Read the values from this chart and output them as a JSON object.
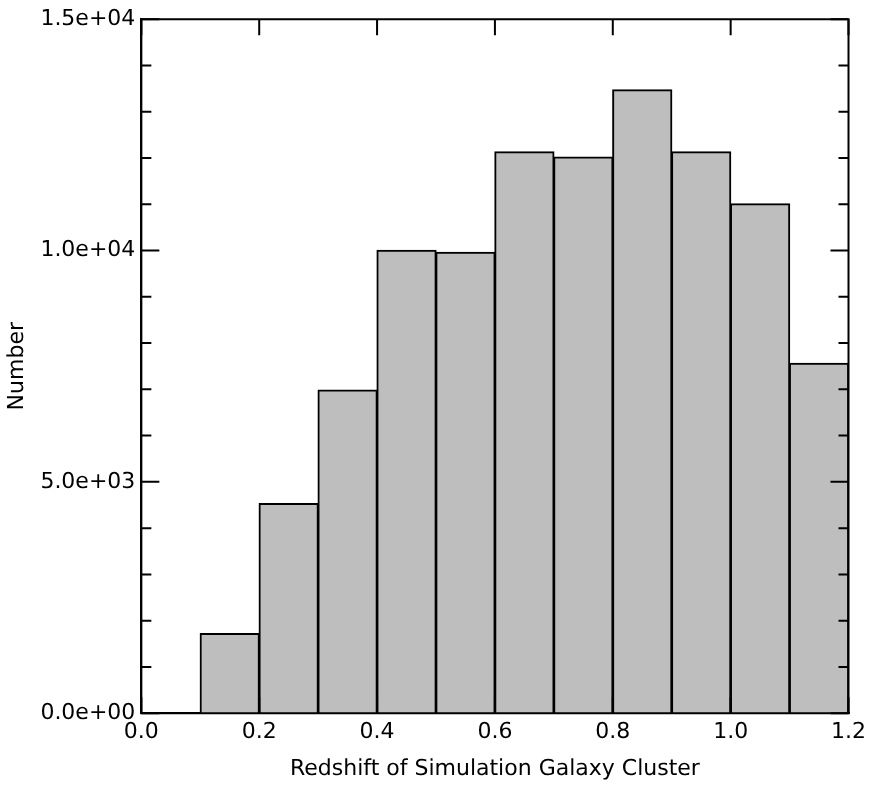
{
  "chart_data": {
    "type": "histogram",
    "xlabel": "Redshift of Simulation Galaxy Cluster",
    "ylabel": "Number",
    "bins": [
      0,
      0.1,
      0.2,
      0.3,
      0.4,
      0.5,
      0.6,
      0.7,
      0.8,
      0.9,
      1.0,
      1.1,
      1.2
    ],
    "values": [
      null,
      1720,
      4530,
      6980,
      10000,
      9960,
      12130,
      12020,
      13470,
      12130,
      11010,
      7560
    ],
    "color": "#bebebe",
    "xlim": [
      0,
      1.2
    ],
    "xticks": [
      {
        "value": 0,
        "label": "0.0"
      },
      0.2,
      0.4,
      0.6,
      0.8,
      {
        "value": 1,
        "label": "1.0"
      },
      1.2
    ],
    "ylim": [
      0,
      15000
    ],
    "yticks": [
      {
        "value": 0,
        "label": "0.0e+00"
      },
      {
        "value": 1000,
        "label": null
      },
      {
        "value": 2000,
        "label": null
      },
      {
        "value": 3000,
        "label": null
      },
      {
        "value": 4000,
        "label": null
      },
      {
        "value": 5000,
        "label": "5.0e+03"
      },
      {
        "value": 6000,
        "label": null
      },
      {
        "value": 7000,
        "label": null
      },
      {
        "value": 8000,
        "label": null
      },
      {
        "value": 9000,
        "label": null
      },
      {
        "value": 10000,
        "label": "1.0e+04"
      },
      {
        "value": 11000,
        "label": null
      },
      {
        "value": 12000,
        "label": null
      },
      {
        "value": 13000,
        "label": null
      },
      {
        "value": 14000,
        "label": null
      },
      {
        "value": 15000,
        "label": "1.5e+04"
      }
    ],
    "grid": false,
    "legend": false
  }
}
